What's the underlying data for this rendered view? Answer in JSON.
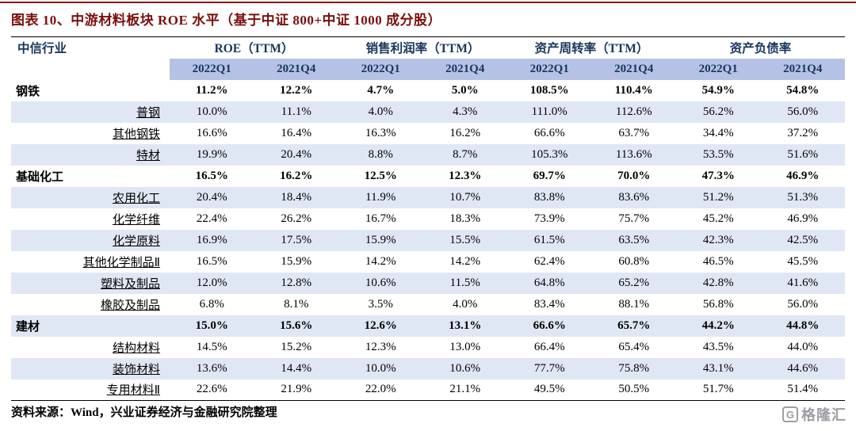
{
  "title": "图表 10、中游材料板块 ROE 水平（基于中证 800+中证 1000 成分股）",
  "table": {
    "industry_header": "中信行业",
    "groups": [
      {
        "label": "ROE（TTM）"
      },
      {
        "label": "销售利润率（TTM）"
      },
      {
        "label": "资产周转率（TTM）"
      },
      {
        "label": "资产负债率"
      }
    ],
    "period_headers": [
      "2022Q1",
      "2021Q4",
      "2022Q1",
      "2021Q4",
      "2022Q1",
      "2021Q4",
      "2022Q1",
      "2021Q4"
    ],
    "rows": [
      {
        "name": "钢铁",
        "bold": true,
        "values": [
          "11.2%",
          "12.2%",
          "4.7%",
          "5.0%",
          "108.5%",
          "110.4%",
          "54.9%",
          "54.8%"
        ]
      },
      {
        "name": "普钢",
        "bold": false,
        "values": [
          "10.0%",
          "11.1%",
          "4.0%",
          "4.3%",
          "111.0%",
          "112.6%",
          "56.2%",
          "56.0%"
        ]
      },
      {
        "name": "其他钢铁",
        "bold": false,
        "values": [
          "16.6%",
          "16.4%",
          "16.3%",
          "16.2%",
          "66.6%",
          "63.7%",
          "34.4%",
          "37.2%"
        ]
      },
      {
        "name": "特材",
        "bold": false,
        "values": [
          "19.9%",
          "20.4%",
          "8.8%",
          "8.7%",
          "105.3%",
          "113.6%",
          "53.5%",
          "51.6%"
        ]
      },
      {
        "name": "基础化工",
        "bold": true,
        "values": [
          "16.5%",
          "16.2%",
          "12.5%",
          "12.3%",
          "69.7%",
          "70.0%",
          "47.3%",
          "46.9%"
        ]
      },
      {
        "name": "农用化工",
        "bold": false,
        "values": [
          "20.4%",
          "18.4%",
          "11.9%",
          "10.7%",
          "83.8%",
          "83.6%",
          "51.2%",
          "51.3%"
        ]
      },
      {
        "name": "化学纤维",
        "bold": false,
        "values": [
          "22.4%",
          "26.2%",
          "16.7%",
          "18.3%",
          "73.9%",
          "75.7%",
          "45.2%",
          "46.9%"
        ]
      },
      {
        "name": "化学原料",
        "bold": false,
        "values": [
          "16.9%",
          "17.5%",
          "15.9%",
          "15.5%",
          "61.5%",
          "63.5%",
          "42.3%",
          "42.5%"
        ]
      },
      {
        "name": "其他化学制品Ⅱ",
        "bold": false,
        "values": [
          "16.5%",
          "15.9%",
          "14.2%",
          "14.2%",
          "62.4%",
          "60.8%",
          "46.5%",
          "45.5%"
        ]
      },
      {
        "name": "塑料及制品",
        "bold": false,
        "values": [
          "12.0%",
          "12.8%",
          "10.6%",
          "11.5%",
          "64.8%",
          "65.2%",
          "42.8%",
          "41.6%"
        ]
      },
      {
        "name": "橡胶及制品",
        "bold": false,
        "values": [
          "6.8%",
          "8.1%",
          "3.5%",
          "4.0%",
          "83.4%",
          "88.1%",
          "56.8%",
          "56.0%"
        ]
      },
      {
        "name": "建材",
        "bold": true,
        "values": [
          "15.0%",
          "15.6%",
          "12.6%",
          "13.1%",
          "66.6%",
          "65.7%",
          "44.2%",
          "44.8%"
        ]
      },
      {
        "name": "结构材料",
        "bold": false,
        "values": [
          "14.5%",
          "15.2%",
          "12.3%",
          "13.0%",
          "66.4%",
          "65.4%",
          "43.5%",
          "44.0%"
        ]
      },
      {
        "name": "装饰材料",
        "bold": false,
        "values": [
          "13.6%",
          "14.4%",
          "10.0%",
          "10.6%",
          "77.7%",
          "75.8%",
          "43.1%",
          "44.6%"
        ]
      },
      {
        "name": "专用材料Ⅱ",
        "bold": false,
        "values": [
          "22.6%",
          "21.9%",
          "22.0%",
          "21.1%",
          "49.5%",
          "50.5%",
          "51.7%",
          "51.4%"
        ]
      }
    ]
  },
  "footer": {
    "source": "资料来源：Wind，兴业证券经济与金融研究院整理"
  },
  "watermark": {
    "icon": "G",
    "text": "格隆汇"
  },
  "colors": {
    "title": "#7a0f0c",
    "header_text": "#17365d",
    "period_bg": "#b5c2e5",
    "alt_row_bg": "#e0e7f4",
    "top_rule": "#8a1410"
  }
}
